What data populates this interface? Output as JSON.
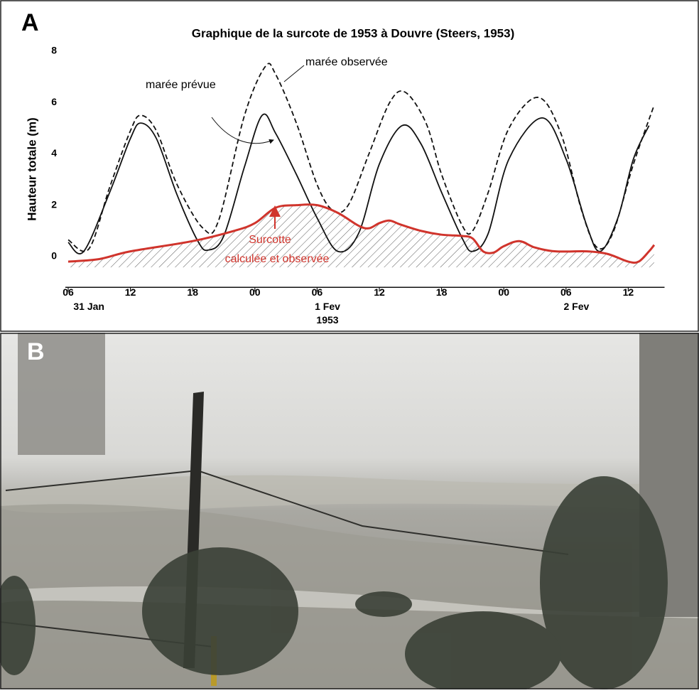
{
  "panel_a": {
    "label": "A"
  },
  "panel_b": {
    "label": "B"
  },
  "chart_data": {
    "type": "line",
    "title": "Graphique de la surcote de 1953 à Douvre (Steers, 1953)",
    "y_label": "Hauteur totale (m)",
    "xlim": [
      6,
      63.5
    ],
    "ylim": [
      -1.2,
      8
    ],
    "yticks": [
      0,
      2,
      4,
      6,
      8
    ],
    "xticks": [
      {
        "value": 6,
        "label": "06"
      },
      {
        "value": 12,
        "label": "12"
      },
      {
        "value": 18,
        "label": "18"
      },
      {
        "value": 24,
        "label": "00"
      },
      {
        "value": 30,
        "label": "06"
      },
      {
        "value": 36,
        "label": "12"
      },
      {
        "value": 42,
        "label": "18"
      },
      {
        "value": 48,
        "label": "00"
      },
      {
        "value": 54,
        "label": "06"
      },
      {
        "value": 60,
        "label": "12"
      }
    ],
    "date_labels": [
      {
        "value": 8,
        "label": "31 Jan"
      },
      {
        "value": 31,
        "label": "1 Fev"
      },
      {
        "value": 55,
        "label": "2 Fev"
      }
    ],
    "year_label": {
      "value": 31,
      "label": "1953"
    },
    "annotations": [
      "marée observée",
      "marée prévue",
      "Surcotte",
      "calculée et observée"
    ],
    "series": [
      {
        "name": "marée prévue",
        "color": "#111111",
        "style": "solid",
        "x": [
          6,
          7.5,
          10,
          12,
          13,
          14.5,
          16.5,
          18.5,
          19.5,
          21,
          23,
          24.7,
          26,
          28,
          30,
          32,
          34,
          36,
          38.2,
          40,
          42,
          44,
          45,
          46.5,
          48.5,
          51.7,
          54,
          56,
          57.3,
          59,
          60.5,
          62
        ],
        "values": [
          0.55,
          0.2,
          2.5,
          4.6,
          5.2,
          4.6,
          2.4,
          0.6,
          0.25,
          0.8,
          3.5,
          5.5,
          4.8,
          3.2,
          1.5,
          0.2,
          0.9,
          3.6,
          5.1,
          4.4,
          2.5,
          0.7,
          0.2,
          0.9,
          3.8,
          5.4,
          3.8,
          1.2,
          0.2,
          1.5,
          3.8,
          5.1
        ]
      },
      {
        "name": "marée observée",
        "color": "#111111",
        "style": "dashed",
        "x": [
          6,
          8,
          10,
          12,
          13,
          14.5,
          16.5,
          19,
          20.5,
          23,
          25,
          26,
          28,
          30,
          31.5,
          33,
          35,
          37,
          38.5,
          40.5,
          42,
          44,
          45,
          46.5,
          48.5,
          51.3,
          53.5,
          55.5,
          57,
          58.5,
          60.5,
          62.5
        ],
        "values": [
          0.65,
          0.3,
          2.7,
          4.9,
          5.5,
          4.9,
          2.8,
          1.1,
          1.4,
          5.5,
          7.4,
          7.1,
          5.2,
          2.8,
          1.8,
          2.0,
          4.0,
          6.0,
          6.4,
          5.2,
          3.2,
          1.2,
          1.0,
          2.5,
          5.0,
          6.2,
          4.8,
          1.8,
          0.35,
          0.9,
          3.6,
          5.9
        ]
      },
      {
        "name": "Surcotte calculée et observée",
        "color": "#d0342c",
        "style": "hatched",
        "x": [
          6,
          9,
          12,
          18,
          22,
          24,
          26,
          28,
          30,
          32,
          34,
          35,
          36,
          37,
          38,
          40,
          42,
          44,
          45,
          46,
          47,
          48,
          49.5,
          51,
          53,
          56,
          58,
          60,
          61,
          62,
          62.5
        ],
        "values": [
          -0.2,
          -0.1,
          0.2,
          0.6,
          1.0,
          1.3,
          1.9,
          2.0,
          2.0,
          1.7,
          1.2,
          1.1,
          1.3,
          1.4,
          1.25,
          1.0,
          0.85,
          0.8,
          0.7,
          0.2,
          0.15,
          0.4,
          0.6,
          0.35,
          0.2,
          0.2,
          0.1,
          -0.2,
          -0.2,
          0.2,
          0.45
        ]
      }
    ]
  }
}
